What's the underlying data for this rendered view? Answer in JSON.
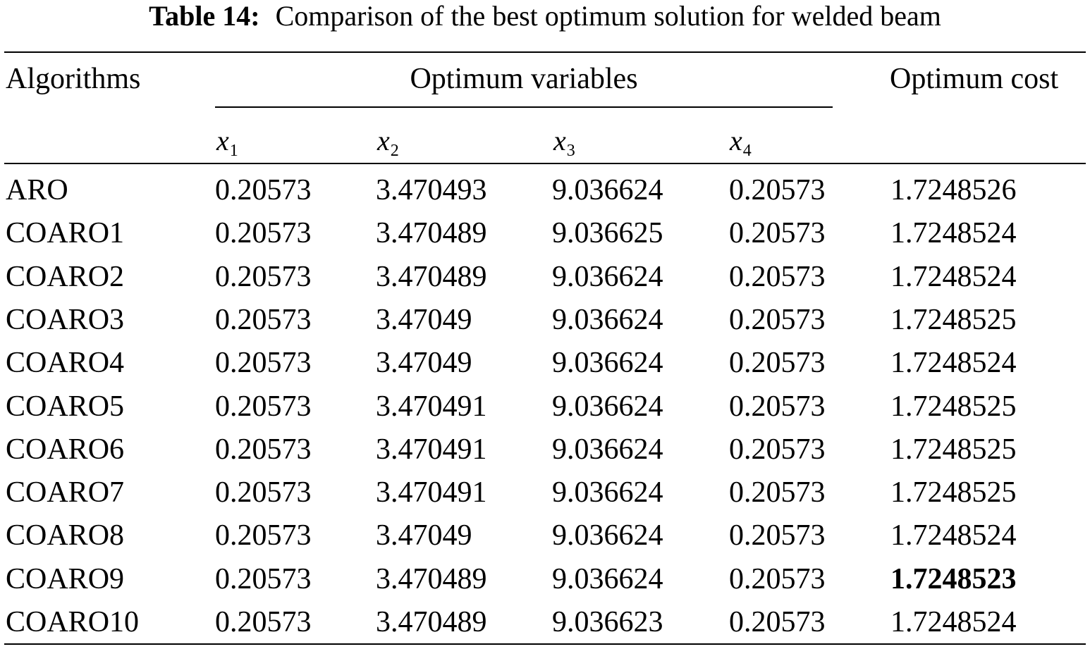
{
  "caption": {
    "label": "Table 14:",
    "text": "Comparison of the best optimum solution for welded beam"
  },
  "headers": {
    "algorithms": "Algorithms",
    "optimum_variables": "Optimum variables",
    "optimum_cost": "Optimum cost",
    "variables": [
      {
        "symbol": "x",
        "sub": "1"
      },
      {
        "symbol": "x",
        "sub": "2"
      },
      {
        "symbol": "x",
        "sub": "3"
      },
      {
        "symbol": "x",
        "sub": "4"
      }
    ]
  },
  "rows": [
    {
      "algorithm": "ARO",
      "x1": "0.20573",
      "x2": "3.470493",
      "x3": "9.036624",
      "x4": "0.20573",
      "cost": "1.7248526",
      "best": false
    },
    {
      "algorithm": "COARO1",
      "x1": "0.20573",
      "x2": "3.470489",
      "x3": "9.036625",
      "x4": "0.20573",
      "cost": "1.7248524",
      "best": false
    },
    {
      "algorithm": "COARO2",
      "x1": "0.20573",
      "x2": "3.470489",
      "x3": "9.036624",
      "x4": "0.20573",
      "cost": "1.7248524",
      "best": false
    },
    {
      "algorithm": "COARO3",
      "x1": "0.20573",
      "x2": "3.47049",
      "x3": "9.036624",
      "x4": "0.20573",
      "cost": "1.7248525",
      "best": false
    },
    {
      "algorithm": "COARO4",
      "x1": "0.20573",
      "x2": "3.47049",
      "x3": "9.036624",
      "x4": "0.20573",
      "cost": "1.7248524",
      "best": false
    },
    {
      "algorithm": "COARO5",
      "x1": "0.20573",
      "x2": "3.470491",
      "x3": "9.036624",
      "x4": "0.20573",
      "cost": "1.7248525",
      "best": false
    },
    {
      "algorithm": "COARO6",
      "x1": "0.20573",
      "x2": "3.470491",
      "x3": "9.036624",
      "x4": "0.20573",
      "cost": "1.7248525",
      "best": false
    },
    {
      "algorithm": "COARO7",
      "x1": "0.20573",
      "x2": "3.470491",
      "x3": "9.036624",
      "x4": "0.20573",
      "cost": "1.7248525",
      "best": false
    },
    {
      "algorithm": "COARO8",
      "x1": "0.20573",
      "x2": "3.47049",
      "x3": "9.036624",
      "x4": "0.20573",
      "cost": "1.7248524",
      "best": false
    },
    {
      "algorithm": "COARO9",
      "x1": "0.20573",
      "x2": "3.470489",
      "x3": "9.036624",
      "x4": "0.20573",
      "cost": "1.7248523",
      "best": true
    },
    {
      "algorithm": "COARO10",
      "x1": "0.20573",
      "x2": "3.470489",
      "x3": "9.036623",
      "x4": "0.20573",
      "cost": "1.7248524",
      "best": false
    }
  ]
}
